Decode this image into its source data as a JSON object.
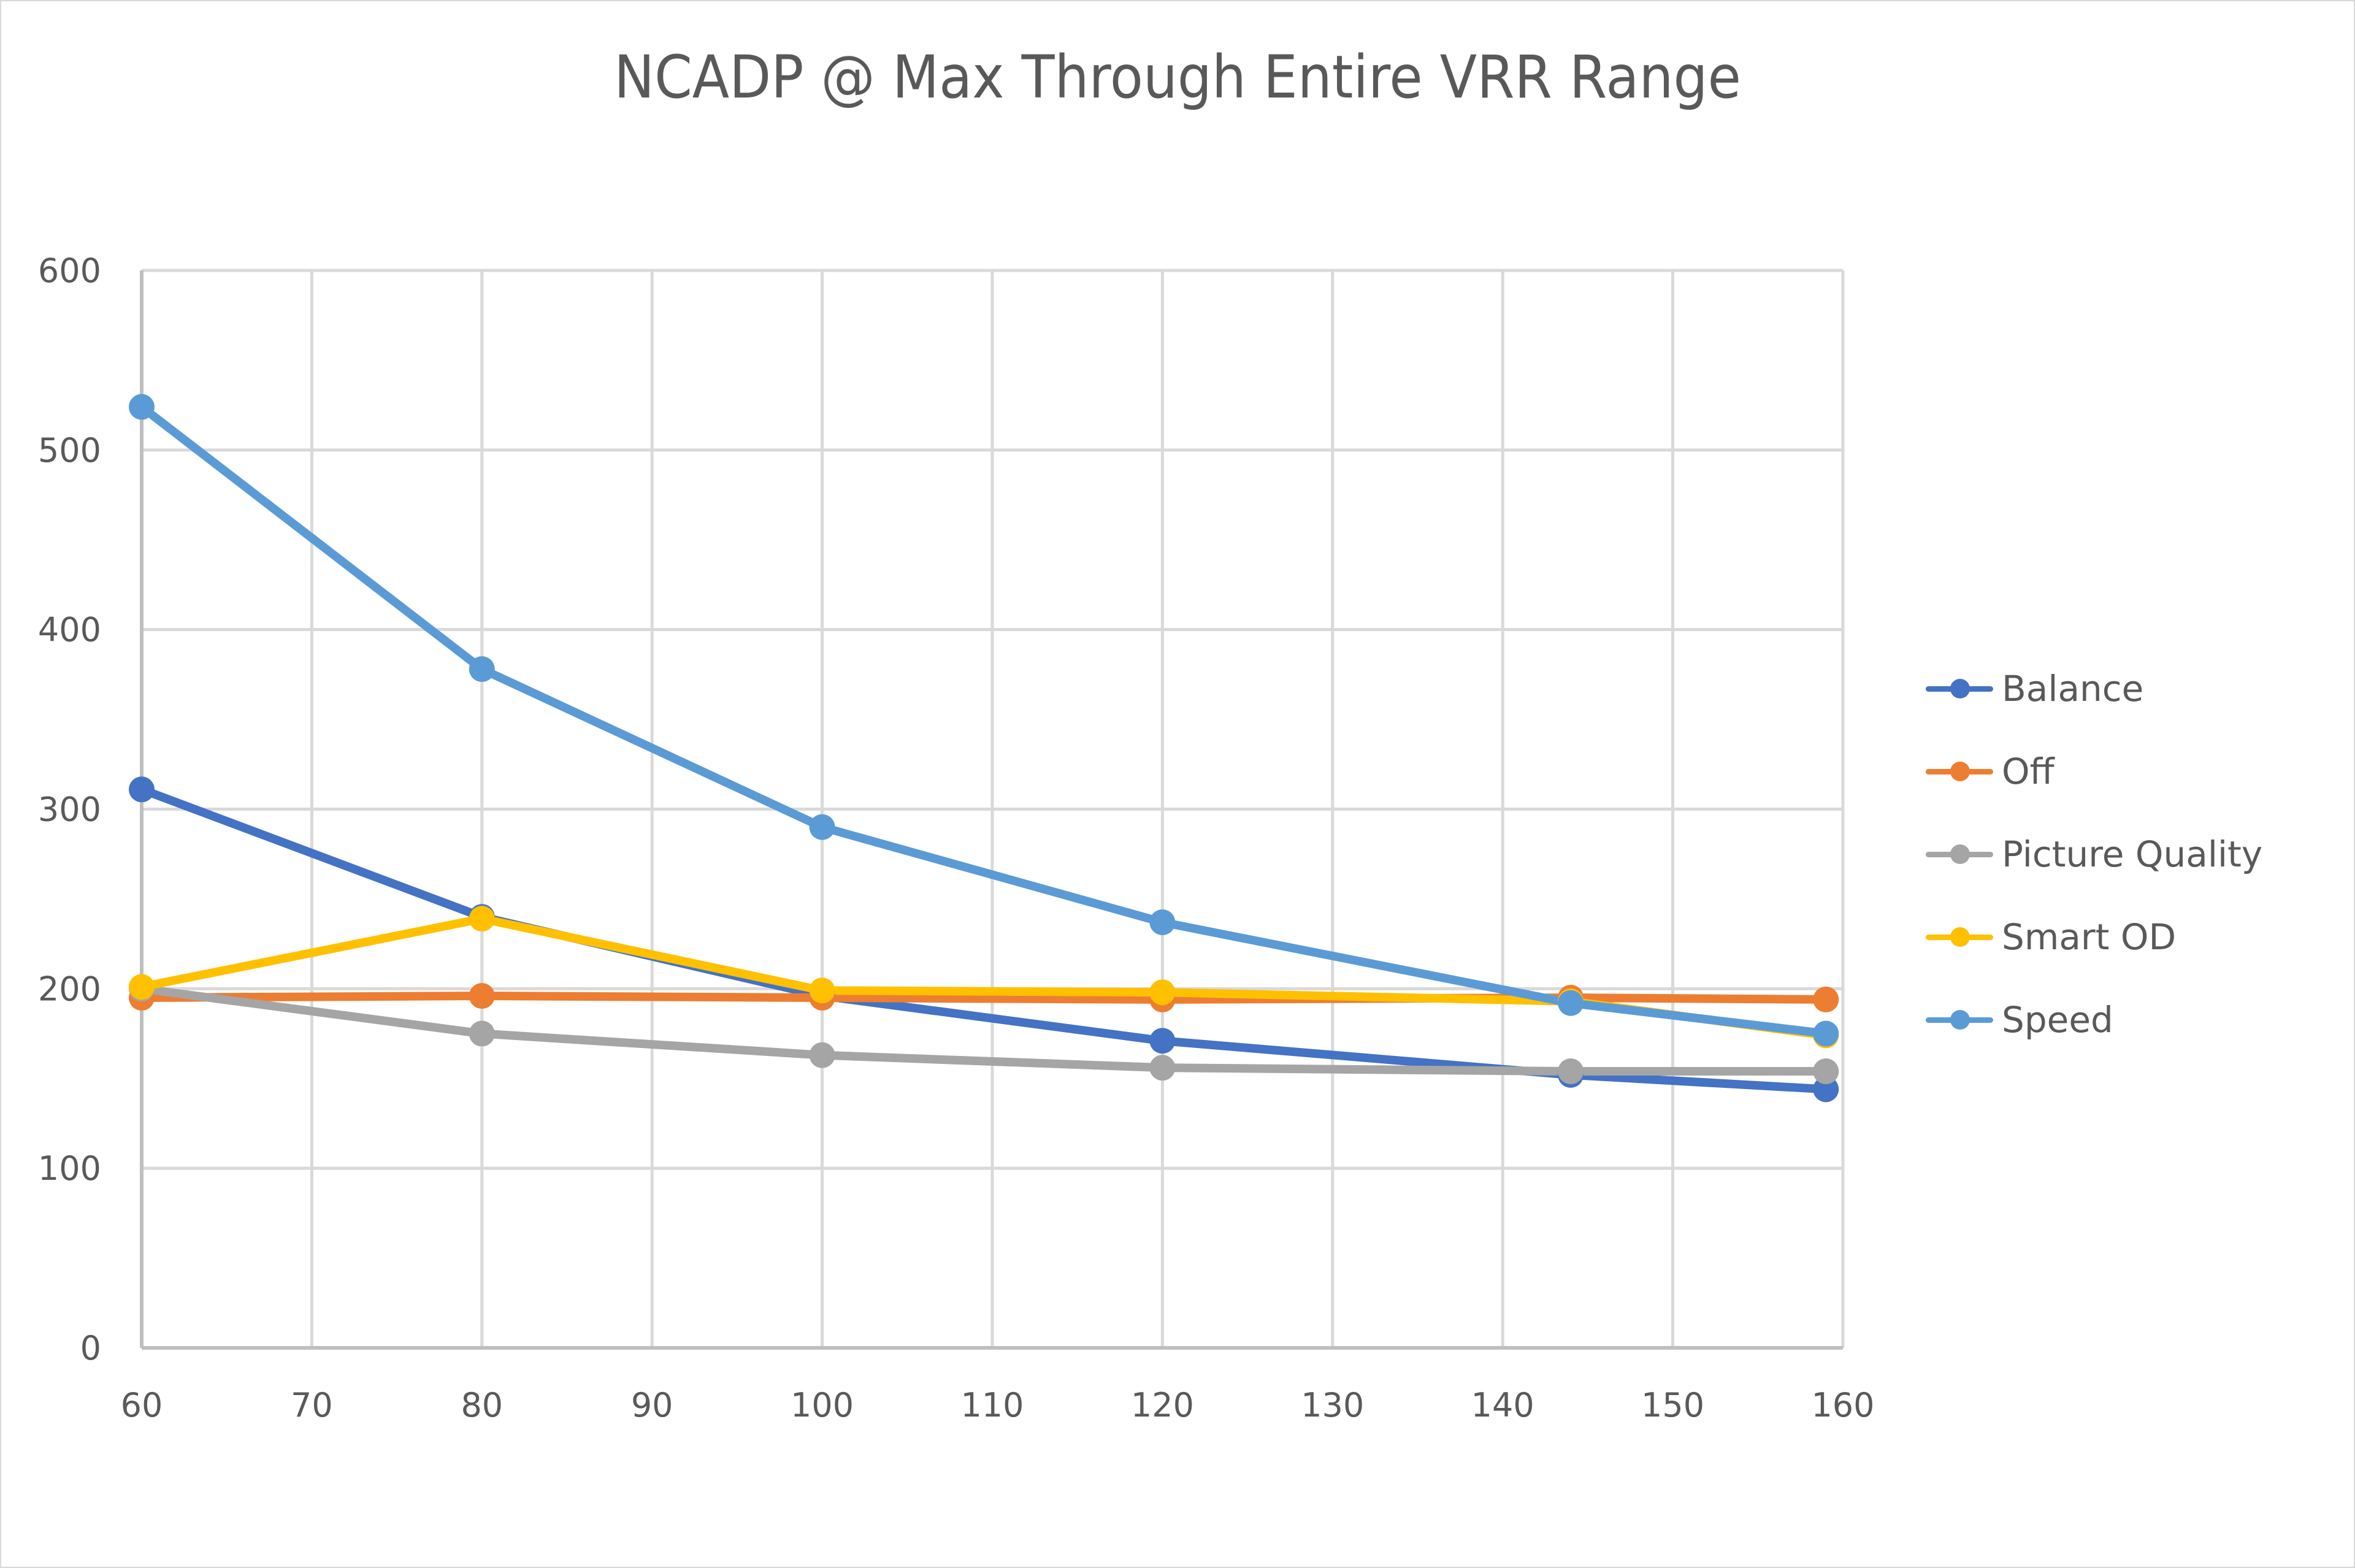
{
  "chart_data": {
    "type": "line",
    "title": "NCADP @ Max Through Entire VRR Range",
    "xlabel": "",
    "ylabel": "",
    "xlim": [
      60,
      160
    ],
    "ylim": [
      0,
      600
    ],
    "x_ticks": [
      60,
      70,
      80,
      90,
      100,
      110,
      120,
      130,
      140,
      150,
      160
    ],
    "y_ticks": [
      0,
      100,
      200,
      300,
      400,
      500,
      600
    ],
    "grid": true,
    "legend_position": "right",
    "x": [
      60,
      80,
      100,
      120,
      144,
      159
    ],
    "series": [
      {
        "name": "Balance",
        "color": "#4472C4",
        "values": [
          311,
          240,
          196,
          171,
          152,
          144
        ]
      },
      {
        "name": "Off",
        "color": "#ED7D31",
        "values": [
          195,
          196,
          195,
          194,
          195,
          194
        ]
      },
      {
        "name": "Picture Quality",
        "color": "#A5A5A5",
        "values": [
          200,
          175,
          163,
          156,
          154,
          154
        ]
      },
      {
        "name": "Smart OD",
        "color": "#FFC000",
        "values": [
          201,
          239,
          199,
          198,
          193,
          174
        ]
      },
      {
        "name": "Speed",
        "color": "#5B9BD5",
        "values": [
          524,
          378,
          290,
          237,
          192,
          175
        ]
      }
    ]
  }
}
